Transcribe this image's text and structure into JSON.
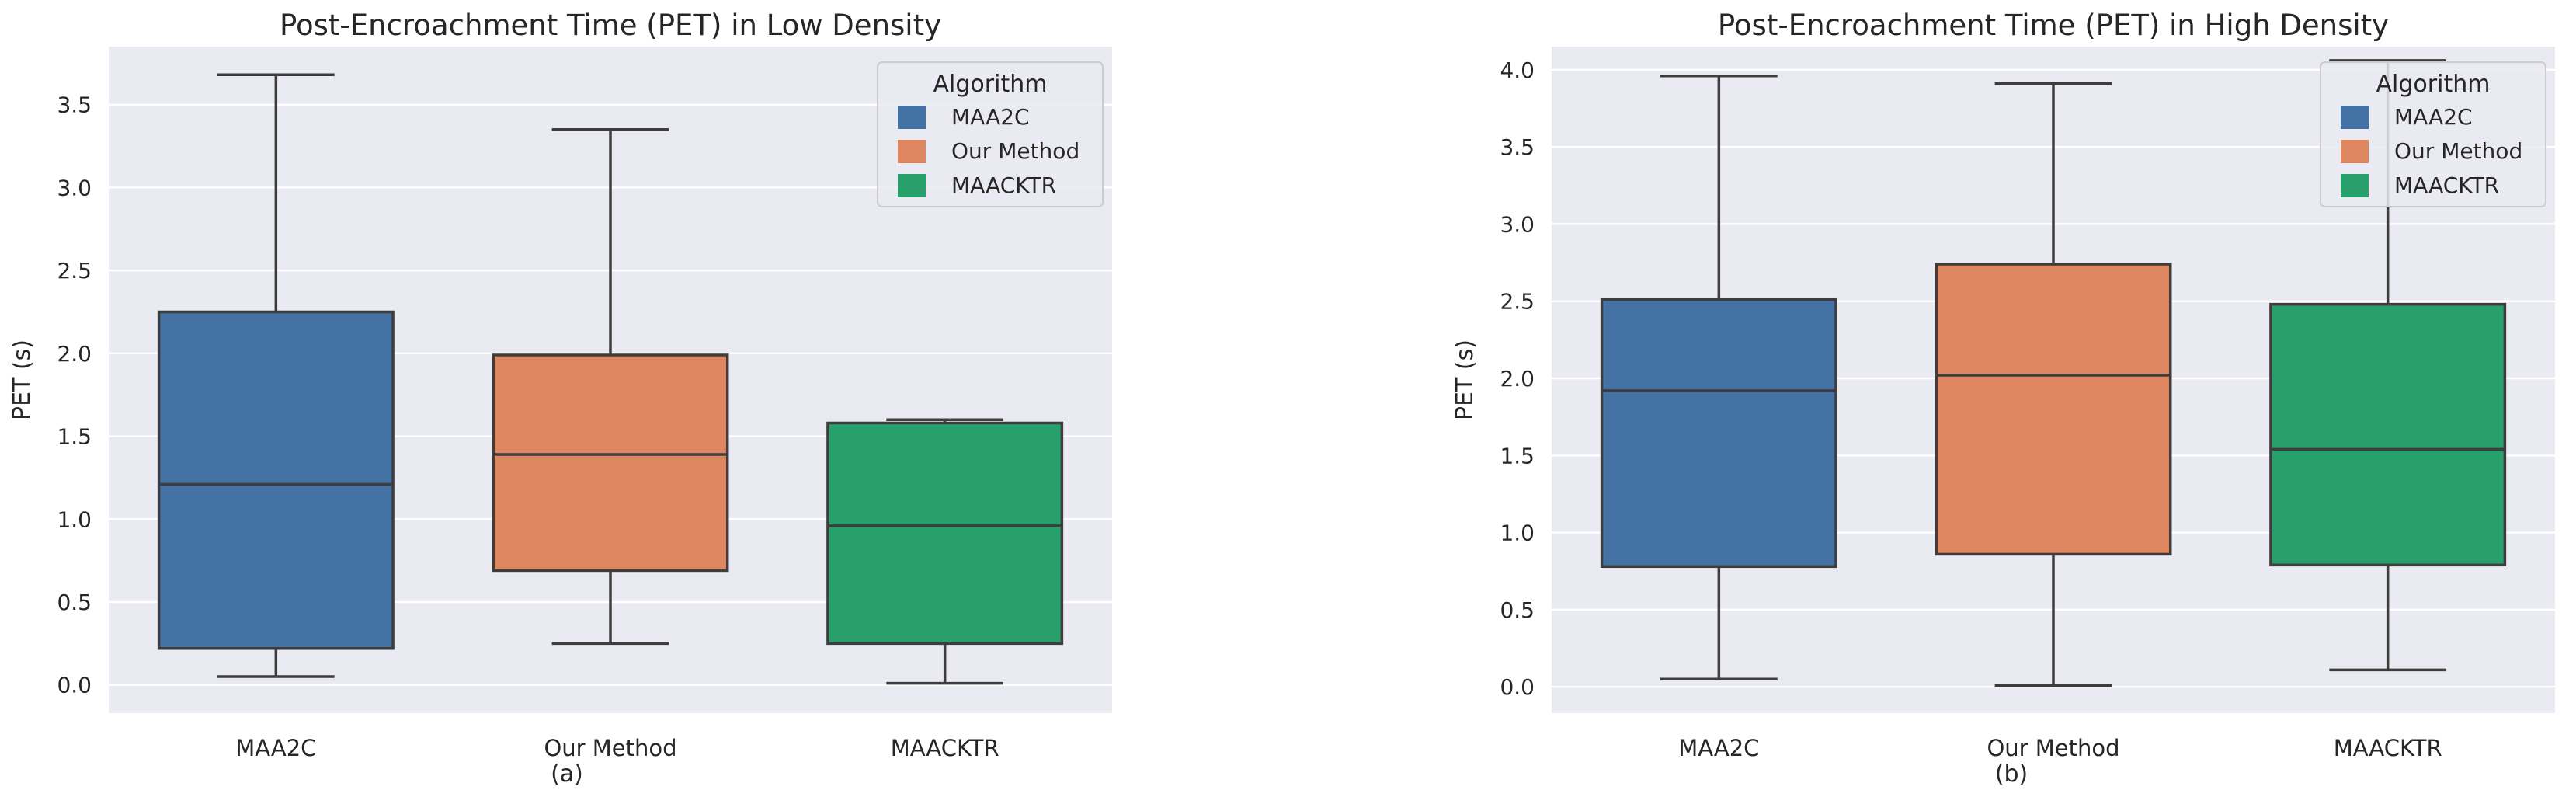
{
  "chart_data": [
    {
      "type": "box",
      "title": "Post-Encroachment Time (PET) in Low Density",
      "ylabel": "PET (s)",
      "xlabel": "",
      "caption": "(a)",
      "categories": [
        "MAA2C",
        "Our Method",
        "MAACKTR"
      ],
      "ylim": [
        -0.17,
        3.85
      ],
      "yticks": [
        0.0,
        0.5,
        1.0,
        1.5,
        2.0,
        2.5,
        3.0,
        3.5
      ],
      "ytick_labels": [
        "0.0",
        "0.5",
        "1.0",
        "1.5",
        "2.0",
        "2.5",
        "3.0",
        "3.5"
      ],
      "grid": true,
      "boxes": [
        {
          "name": "MAA2C",
          "whisker_low": 0.05,
          "q1": 0.22,
          "median": 1.21,
          "q3": 2.25,
          "whisker_high": 3.68,
          "color": "#4472a4"
        },
        {
          "name": "Our Method",
          "whisker_low": 0.25,
          "q1": 0.69,
          "median": 1.39,
          "q3": 1.99,
          "whisker_high": 3.35,
          "color": "#de8660"
        },
        {
          "name": "MAACKTR",
          "whisker_low": 0.01,
          "q1": 0.25,
          "median": 0.96,
          "q3": 1.58,
          "whisker_high": 1.6,
          "color": "#28a06b"
        }
      ],
      "legend": {
        "title": "Algorithm",
        "position": "upper right",
        "entries": [
          {
            "label": "MAA2C",
            "color": "#4472a4"
          },
          {
            "label": "Our Method",
            "color": "#de8660"
          },
          {
            "label": "MAACKTR",
            "color": "#28a06b"
          }
        ]
      }
    },
    {
      "type": "box",
      "title": "Post-Encroachment Time (PET) in High Density",
      "ylabel": "PET (s)",
      "xlabel": "",
      "caption": "(b)",
      "categories": [
        "MAA2C",
        "Our Method",
        "MAACKTR"
      ],
      "ylim": [
        -0.17,
        4.15
      ],
      "yticks": [
        0.0,
        0.5,
        1.0,
        1.5,
        2.0,
        2.5,
        3.0,
        3.5,
        4.0
      ],
      "ytick_labels": [
        "0.0",
        "0.5",
        "1.0",
        "1.5",
        "2.0",
        "2.5",
        "3.0",
        "3.5",
        "4.0"
      ],
      "grid": true,
      "boxes": [
        {
          "name": "MAA2C",
          "whisker_low": 0.05,
          "q1": 0.78,
          "median": 1.92,
          "q3": 2.51,
          "whisker_high": 3.96,
          "color": "#4472a4"
        },
        {
          "name": "Our Method",
          "whisker_low": 0.01,
          "q1": 0.86,
          "median": 2.02,
          "q3": 2.74,
          "whisker_high": 3.91,
          "color": "#de8660"
        },
        {
          "name": "MAACKTR",
          "whisker_low": 0.11,
          "q1": 0.79,
          "median": 1.54,
          "q3": 2.48,
          "whisker_high": 4.06,
          "color": "#28a06b"
        }
      ],
      "legend": {
        "title": "Algorithm",
        "position": "upper right",
        "entries": [
          {
            "label": "MAA2C",
            "color": "#4472a4"
          },
          {
            "label": "Our Method",
            "color": "#de8660"
          },
          {
            "label": "MAACKTR",
            "color": "#28a06b"
          }
        ]
      }
    }
  ]
}
